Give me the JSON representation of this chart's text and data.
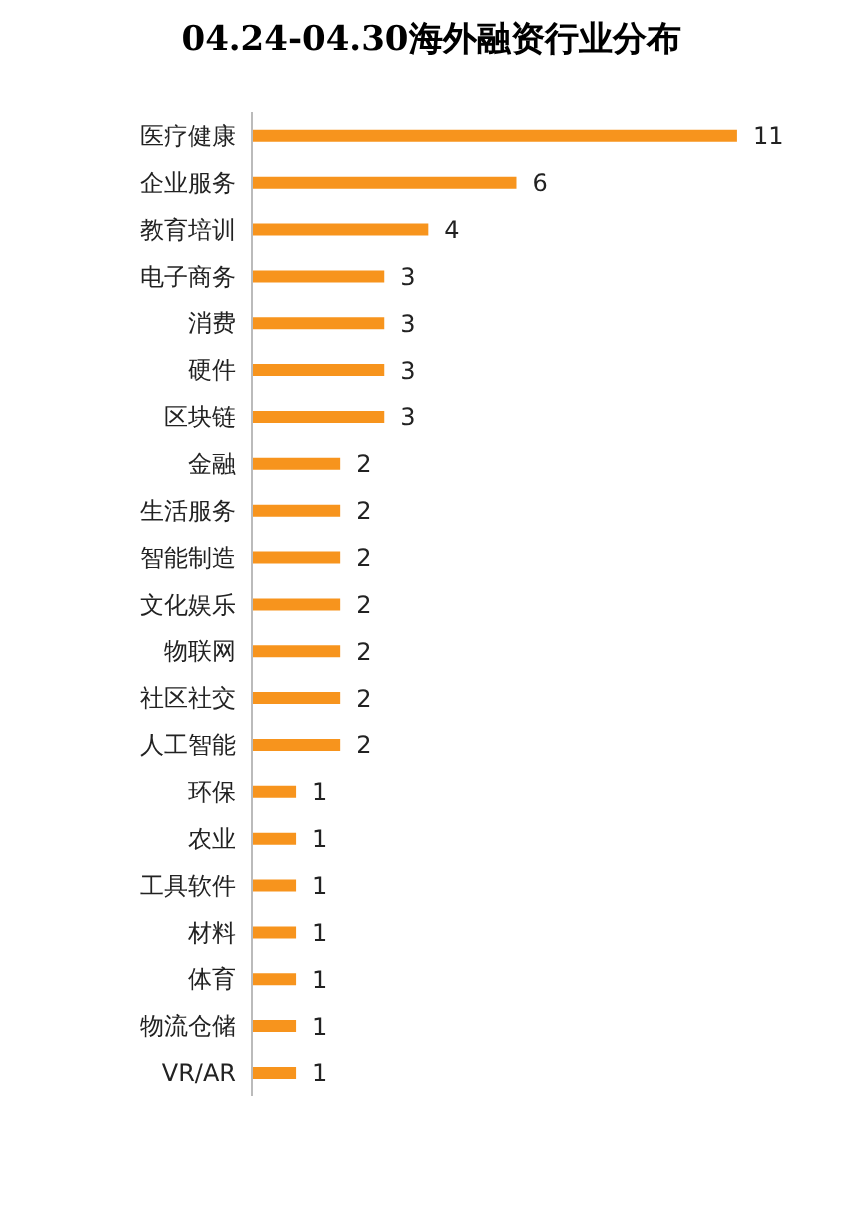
{
  "chart_data": {
    "type": "bar",
    "orientation": "horizontal",
    "title": "04.24-04.30海外融资行业分布",
    "categories": [
      "医疗健康",
      "企业服务",
      "教育培训",
      "电子商务",
      "消费",
      "硬件",
      "区块链",
      "金融",
      "生活服务",
      "智能制造",
      "文化娱乐",
      "物联网",
      "社区社交",
      "人工智能",
      "环保",
      "农业",
      "工具软件",
      "材料",
      "体育",
      "物流仓储",
      "VR/AR"
    ],
    "values": [
      11,
      6,
      4,
      3,
      3,
      3,
      3,
      2,
      2,
      2,
      2,
      2,
      2,
      2,
      1,
      1,
      1,
      1,
      1,
      1,
      1
    ],
    "color": "#f7941d",
    "data_labels": true,
    "tick_labels": "y",
    "grid": false
  }
}
